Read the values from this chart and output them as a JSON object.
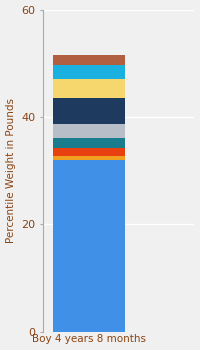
{
  "category": "Boy 4 years 8 months",
  "segments": [
    {
      "value": 32.0,
      "color": "#4090e8"
    },
    {
      "value": 0.8,
      "color": "#f0a020"
    },
    {
      "value": 1.5,
      "color": "#e84010"
    },
    {
      "value": 1.8,
      "color": "#1a7d8e"
    },
    {
      "value": 2.5,
      "color": "#b8bec8"
    },
    {
      "value": 5.0,
      "color": "#1e3a5f"
    },
    {
      "value": 3.5,
      "color": "#f5d76e"
    },
    {
      "value": 2.5,
      "color": "#1ab0e0"
    },
    {
      "value": 2.0,
      "color": "#b06040"
    }
  ],
  "ylabel": "Percentile Weight in Pounds",
  "ylim": [
    0,
    60
  ],
  "yticks": [
    0,
    20,
    40,
    60
  ],
  "background_color": "#f0f0f0",
  "label_color": "#8b4513",
  "grid_color": "#ffffff",
  "ylabel_fontsize": 7.5,
  "xlabel_fontsize": 8
}
